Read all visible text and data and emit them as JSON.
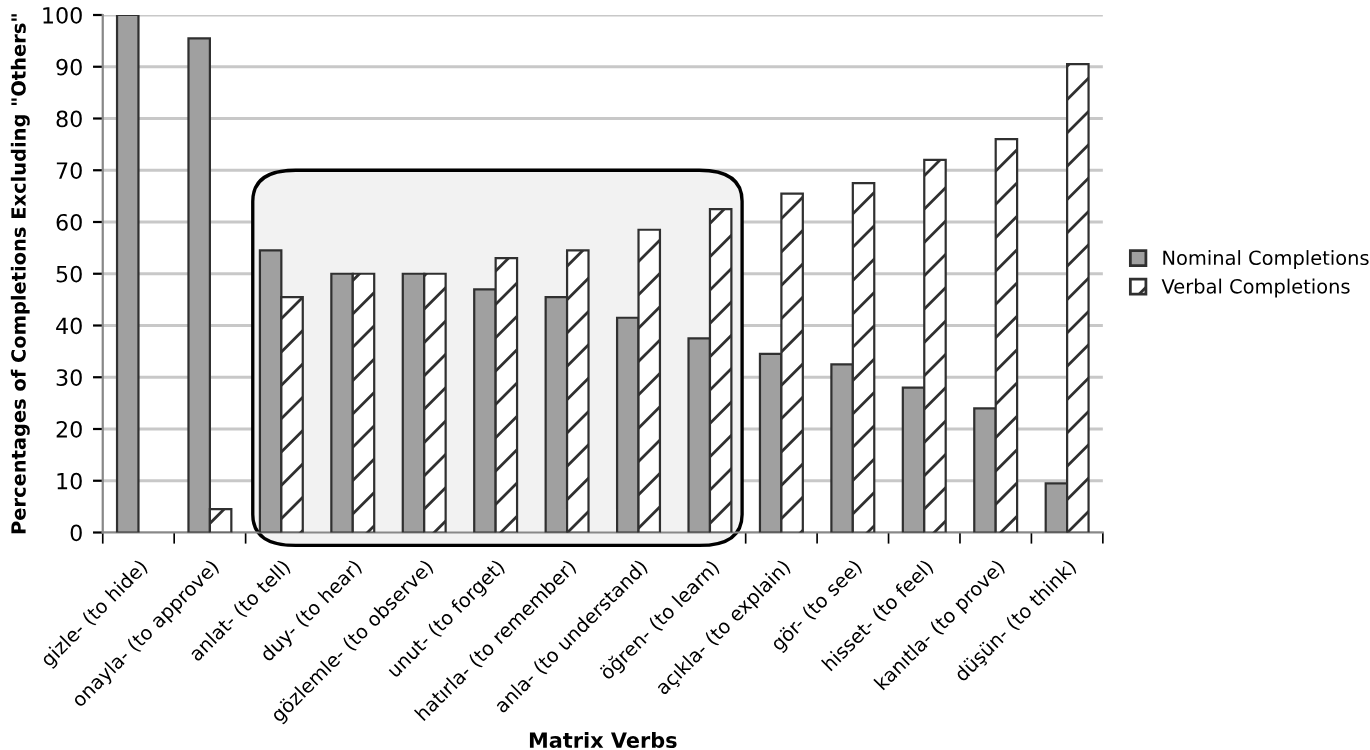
{
  "chart_data": {
    "type": "bar",
    "xlabel": "Matrix Verbs",
    "ylabel": "Percentages of Completions Excluding \"Others\"",
    "categories": [
      "gizle- (to hide)",
      "onayla- (to approve)",
      "anlat- (to tell)",
      "duy- (to hear)",
      "gözlemle- (to observe)",
      "unut- (to forget)",
      "hatırla- (to remember)",
      "anla- (to understand)",
      "öğren- (to learn)",
      "açıkla- (to explain)",
      "gör- (to see)",
      "hisset- (to feel)",
      "kanıtla- (to prove)",
      "düşün- (to think)"
    ],
    "series": [
      {
        "name": "Nominal Completions",
        "color": "#a0a0a0",
        "values": [
          100,
          95.5,
          54.5,
          50,
          50,
          47,
          45.5,
          41.5,
          37.5,
          34.5,
          32.5,
          28,
          24,
          9.5
        ]
      },
      {
        "name": "Verbal Completions",
        "color": "#303030",
        "values": [
          0,
          4.5,
          45.5,
          50,
          50,
          53,
          54.5,
          58.5,
          62.5,
          65.5,
          67.5,
          72,
          76,
          90.5
        ]
      }
    ],
    "ylim": [
      0,
      100
    ],
    "yticks": [
      0,
      10,
      20,
      30,
      40,
      50,
      60,
      70,
      80,
      90,
      100
    ],
    "grid": "y",
    "legend": "right"
  }
}
